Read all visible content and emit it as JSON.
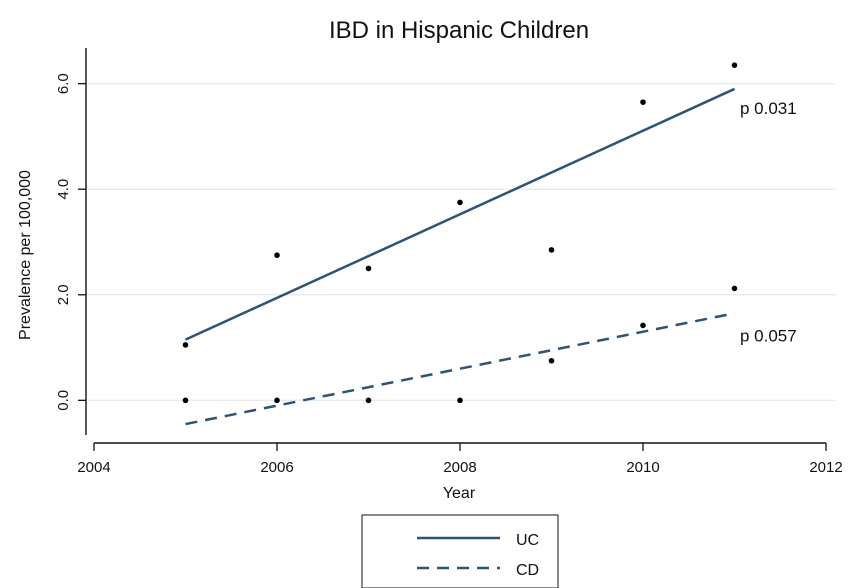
{
  "chart_data": {
    "type": "scatter",
    "title": "IBD in Hispanic Children",
    "xlabel": "Year",
    "ylabel": "Prevalence per 100,000",
    "xlim": [
      2004,
      2012
    ],
    "ylim": [
      -0.6,
      6.6
    ],
    "x_ticks": [
      2004,
      2006,
      2008,
      2010,
      2012
    ],
    "x_tick_labels": [
      "2004",
      "2006",
      "2008",
      "2010",
      "2012"
    ],
    "y_ticks": [
      0,
      2,
      4,
      6
    ],
    "y_tick_labels": [
      "0.0",
      "2.0",
      "4.0",
      "6.0"
    ],
    "grid": "horizontal",
    "legend_position": "bottom-center",
    "series": [
      {
        "name": "UC",
        "color": "#2f5275",
        "line_style": "solid",
        "points": [
          [
            2005,
            1.05
          ],
          [
            2006,
            2.75
          ],
          [
            2007,
            2.5
          ],
          [
            2008,
            3.75
          ],
          [
            2009,
            2.85
          ],
          [
            2010,
            5.65
          ],
          [
            2011,
            6.35
          ]
        ],
        "fit": [
          [
            2005,
            1.15
          ],
          [
            2011,
            5.9
          ]
        ],
        "annotation": "p 0.031"
      },
      {
        "name": "CD",
        "color": "#2f5275",
        "line_style": "dashed",
        "points": [
          [
            2005,
            0.0
          ],
          [
            2006,
            0.0
          ],
          [
            2007,
            0.0
          ],
          [
            2008,
            0.0
          ],
          [
            2009,
            0.75
          ],
          [
            2010,
            1.42
          ],
          [
            2011,
            2.12
          ]
        ],
        "fit": [
          [
            2005,
            -0.45
          ],
          [
            2011,
            1.65
          ]
        ],
        "annotation": "p 0.057"
      }
    ]
  }
}
